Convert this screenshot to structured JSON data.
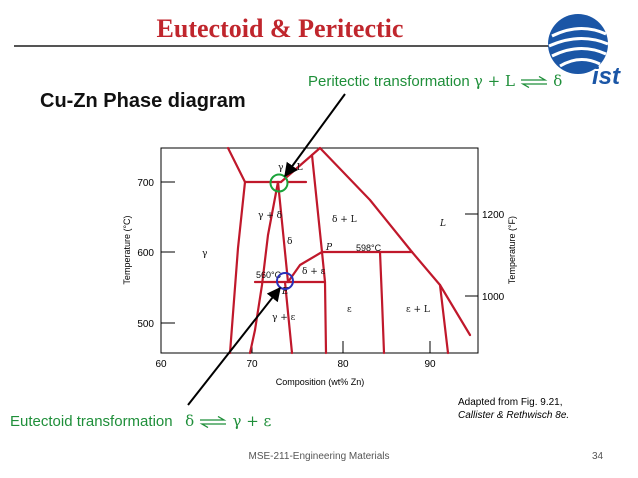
{
  "slide": {
    "title": "Eutectoid & Peritectic",
    "subtitle": "Cu-Zn Phase diagram",
    "peritectic": {
      "label": "Peritectic transformation",
      "left": "γ + L",
      "right": "δ"
    },
    "eutectoid": {
      "label": "Eutectoid transformation",
      "left": "δ",
      "right": "γ + ε"
    },
    "adapted_line1": "Adapted from Fig. 9.21,",
    "adapted_line2": "Callister & Rethwisch 8e.",
    "footer": "MSE-211-Engineering Materials",
    "page": "34",
    "logo_text": "ist"
  },
  "diagram": {
    "xlabel": "Composition (wt% Zn)",
    "ylabel_left": "Temperature (°C)",
    "ylabel_right": "Temperature (°F)",
    "x_ticks": [
      "60",
      "70",
      "80",
      "90"
    ],
    "y_ticks_left": [
      "700",
      "600",
      "500"
    ],
    "y_ticks_right": [
      "1200",
      "1000"
    ],
    "phase_labels": {
      "gamma_L": "γ + L",
      "gamma_delta": "γ + δ",
      "gamma": "γ",
      "delta": "δ",
      "delta_L": "δ + L",
      "L": "L",
      "P": "P",
      "temp_598": "598°C",
      "temp_560": "560°C",
      "delta_eps": "δ + ε",
      "E": "E",
      "gamma_eps": "γ + ε",
      "eps": "ε",
      "eps_L": "ε + L"
    },
    "colors": {
      "phase_line": "#c0182b",
      "peritectic_circle": "#1aa33a",
      "eutectoid_circle": "#2a2fb8",
      "arrow": "#000000",
      "title": "#c0262d",
      "label_green": "#1f8f3a"
    }
  }
}
